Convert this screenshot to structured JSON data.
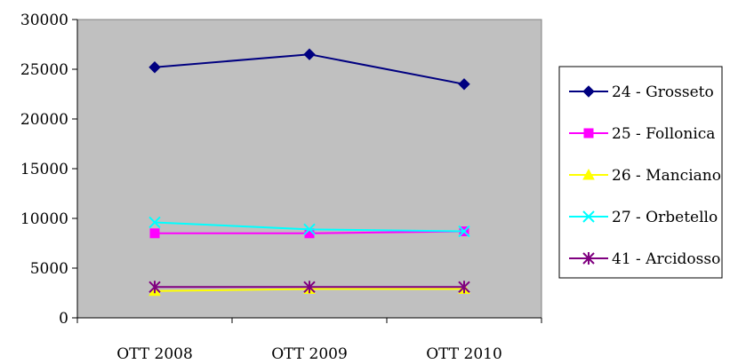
{
  "chart_data": {
    "type": "line",
    "categories": [
      "OTT 2008",
      "OTT 2009",
      "OTT 2010"
    ],
    "ylim": [
      0,
      30000
    ],
    "yticks": [
      0,
      5000,
      10000,
      15000,
      20000,
      25000,
      30000
    ],
    "grid": false,
    "legend_position": "right",
    "plot_background": "#c0c0c0",
    "series": [
      {
        "name": "24 - Grosseto",
        "values": [
          25200,
          26500,
          23500
        ],
        "color": "#000080",
        "marker": "diamond"
      },
      {
        "name": "25 - Follonica",
        "values": [
          8500,
          8500,
          8700
        ],
        "color": "#ff00ff",
        "marker": "square"
      },
      {
        "name": "26 - Manciano",
        "values": [
          2700,
          2900,
          2900
        ],
        "color": "#ffff00",
        "marker": "triangle"
      },
      {
        "name": "27 - Orbetello",
        "values": [
          9600,
          8900,
          8700
        ],
        "color": "#00ffff",
        "marker": "x"
      },
      {
        "name": "41 - Arcidosso",
        "values": [
          3100,
          3100,
          3100
        ],
        "color": "#800080",
        "marker": "star"
      }
    ]
  }
}
